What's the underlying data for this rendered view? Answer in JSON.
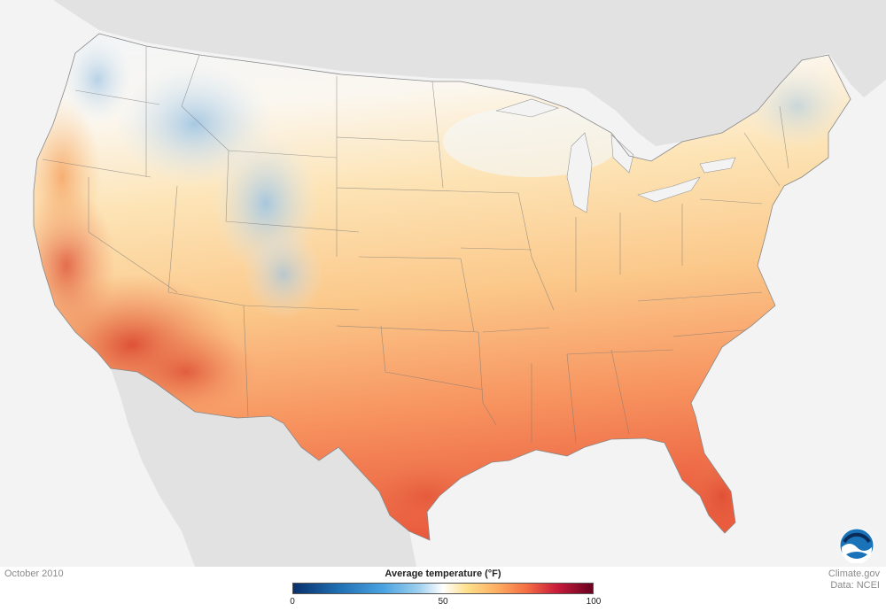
{
  "map": {
    "date_label": "October 2010",
    "icons": [
      "noaa-logo-icon"
    ]
  },
  "legend": {
    "title": "Average temperature (°F)",
    "ticks": [
      "0",
      "50",
      "100"
    ],
    "range": [
      0,
      100
    ],
    "colors": [
      "#08306b",
      "#1f6fb2",
      "#4aa3e0",
      "#9fd0ef",
      "#ffffff",
      "#fee08b",
      "#fdae61",
      "#f46d43",
      "#c81c3b",
      "#67001f"
    ]
  },
  "credits": {
    "line1": "Climate.gov",
    "line2": "Data: NCEI"
  },
  "regions": {
    "snow_mountain": "#a9cbe6",
    "cool": "#e8f1f8",
    "mild": "#fde5b8",
    "warm": "#fbbc7d",
    "hot": "#f47e56",
    "hottest": "#e1553a",
    "neighbor_land": "#e2e2e2",
    "water": "#f3f3f3"
  }
}
